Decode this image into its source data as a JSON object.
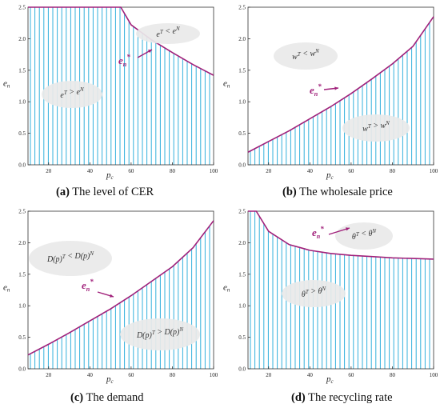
{
  "figure": {
    "panels": [
      {
        "letter": "(a)",
        "text": "The level of CER"
      },
      {
        "letter": "(b)",
        "text": "The wholesale price"
      },
      {
        "letter": "(c)",
        "text": "The demand"
      },
      {
        "letter": "(d)",
        "text": "The recycling rate"
      }
    ]
  },
  "colors": {
    "curve": "#a0207a",
    "hatch": "#33b0dc",
    "bubble": "#e9e9e9"
  },
  "chart_data": [
    {
      "type": "area",
      "xlabel": "p_c",
      "ylabel": "e_n",
      "xlim": [
        10,
        100
      ],
      "ylim": [
        0,
        2.5
      ],
      "xticks": [
        "20",
        "40",
        "60",
        "80",
        "100"
      ],
      "yticks": [
        "0.0",
        "0.5",
        "1.0",
        "1.5",
        "2.0",
        "2.5"
      ],
      "fill": "below",
      "series": [
        {
          "x": [
            10,
            55,
            60,
            70,
            80,
            90,
            100
          ],
          "y": [
            2.5,
            2.5,
            2.22,
            1.98,
            1.78,
            1.59,
            1.42
          ]
        }
      ],
      "curve_label": "e_n*",
      "regions": [
        {
          "text": "e^T < e^N",
          "position": "above"
        },
        {
          "text": "e^T > e^N",
          "position": "below"
        }
      ]
    },
    {
      "type": "area",
      "xlabel": "p_c",
      "ylabel": "e_n",
      "xlim": [
        10,
        100
      ],
      "ylim": [
        0,
        2.5
      ],
      "xticks": [
        "20",
        "40",
        "60",
        "80",
        "100"
      ],
      "yticks": [
        "0.0",
        "0.5",
        "1.0",
        "1.5",
        "2.0",
        "2.5"
      ],
      "fill": "below",
      "series": [
        {
          "x": [
            10,
            20,
            30,
            40,
            50,
            60,
            70,
            80,
            90,
            100
          ],
          "y": [
            0.2,
            0.37,
            0.54,
            0.73,
            0.92,
            1.13,
            1.36,
            1.6,
            1.88,
            2.35
          ]
        }
      ],
      "curve_label": "e_n*",
      "regions": [
        {
          "text": "w^T < w^N",
          "position": "above"
        },
        {
          "text": "w^T > w^N",
          "position": "below"
        }
      ]
    },
    {
      "type": "area",
      "xlabel": "p_c",
      "ylabel": "e_n",
      "xlim": [
        10,
        100
      ],
      "ylim": [
        0,
        2.5
      ],
      "xticks": [
        "20",
        "40",
        "60",
        "80",
        "100"
      ],
      "yticks": [
        "0.0",
        "0.5",
        "1.0",
        "1.5",
        "2.0",
        "2.5"
      ],
      "fill": "below",
      "series": [
        {
          "x": [
            10,
            20,
            30,
            40,
            50,
            60,
            70,
            80,
            90,
            100
          ],
          "y": [
            0.22,
            0.39,
            0.57,
            0.76,
            0.95,
            1.16,
            1.39,
            1.62,
            1.92,
            2.35
          ]
        }
      ],
      "curve_label": "e_n*",
      "regions": [
        {
          "text": "D(p)^T < D(p)^N",
          "position": "above"
        },
        {
          "text": "D(p)^T > D(p)^N",
          "position": "below"
        }
      ]
    },
    {
      "type": "area",
      "xlabel": "p_c",
      "ylabel": "e_n",
      "xlim": [
        10,
        100
      ],
      "ylim": [
        0,
        2.5
      ],
      "xticks": [
        "20",
        "40",
        "60",
        "80",
        "100"
      ],
      "yticks": [
        "0.0",
        "0.5",
        "1.0",
        "1.5",
        "2.0",
        "2.5"
      ],
      "fill": "below",
      "series": [
        {
          "x": [
            10,
            14,
            20,
            30,
            40,
            50,
            60,
            70,
            80,
            90,
            100
          ],
          "y": [
            2.5,
            2.5,
            2.18,
            1.97,
            1.88,
            1.83,
            1.8,
            1.78,
            1.76,
            1.75,
            1.74
          ]
        }
      ],
      "curve_label": "e_n*",
      "regions": [
        {
          "text": "θ^T < θ^N",
          "position": "above"
        },
        {
          "text": "θ^T > θ^N",
          "position": "below"
        }
      ]
    }
  ]
}
